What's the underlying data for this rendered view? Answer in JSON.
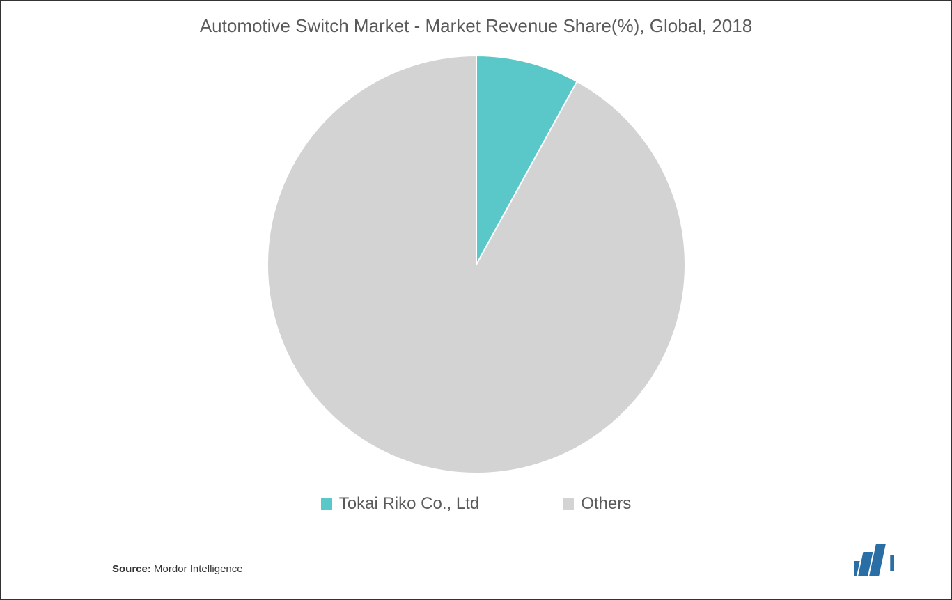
{
  "chart": {
    "type": "pie",
    "title": "Automotive Switch Market - Market Revenue Share(%), Global, 2018",
    "title_fontsize": 26,
    "title_color": "#5a5a5a",
    "background_color": "#ffffff",
    "pie_radius": 300,
    "slices": [
      {
        "label": "Tokai Riko Co., Ltd",
        "value": 8,
        "color": "#5ac8c8"
      },
      {
        "label": "Others",
        "value": 92,
        "color": "#d3d3d3"
      }
    ],
    "slice_border_color": "#ffffff",
    "slice_border_width": 2,
    "legend_fontsize": 24,
    "legend_color": "#5a5a5a",
    "legend_marker_size": 16
  },
  "source": {
    "label": "Source:",
    "value": "Mordor Intelligence",
    "fontsize": 15,
    "color": "#333333"
  },
  "logo": {
    "name": "mordor-intelligence-logo",
    "bar_color": "#2a6ea6",
    "text_color": "#2a6ea6"
  }
}
